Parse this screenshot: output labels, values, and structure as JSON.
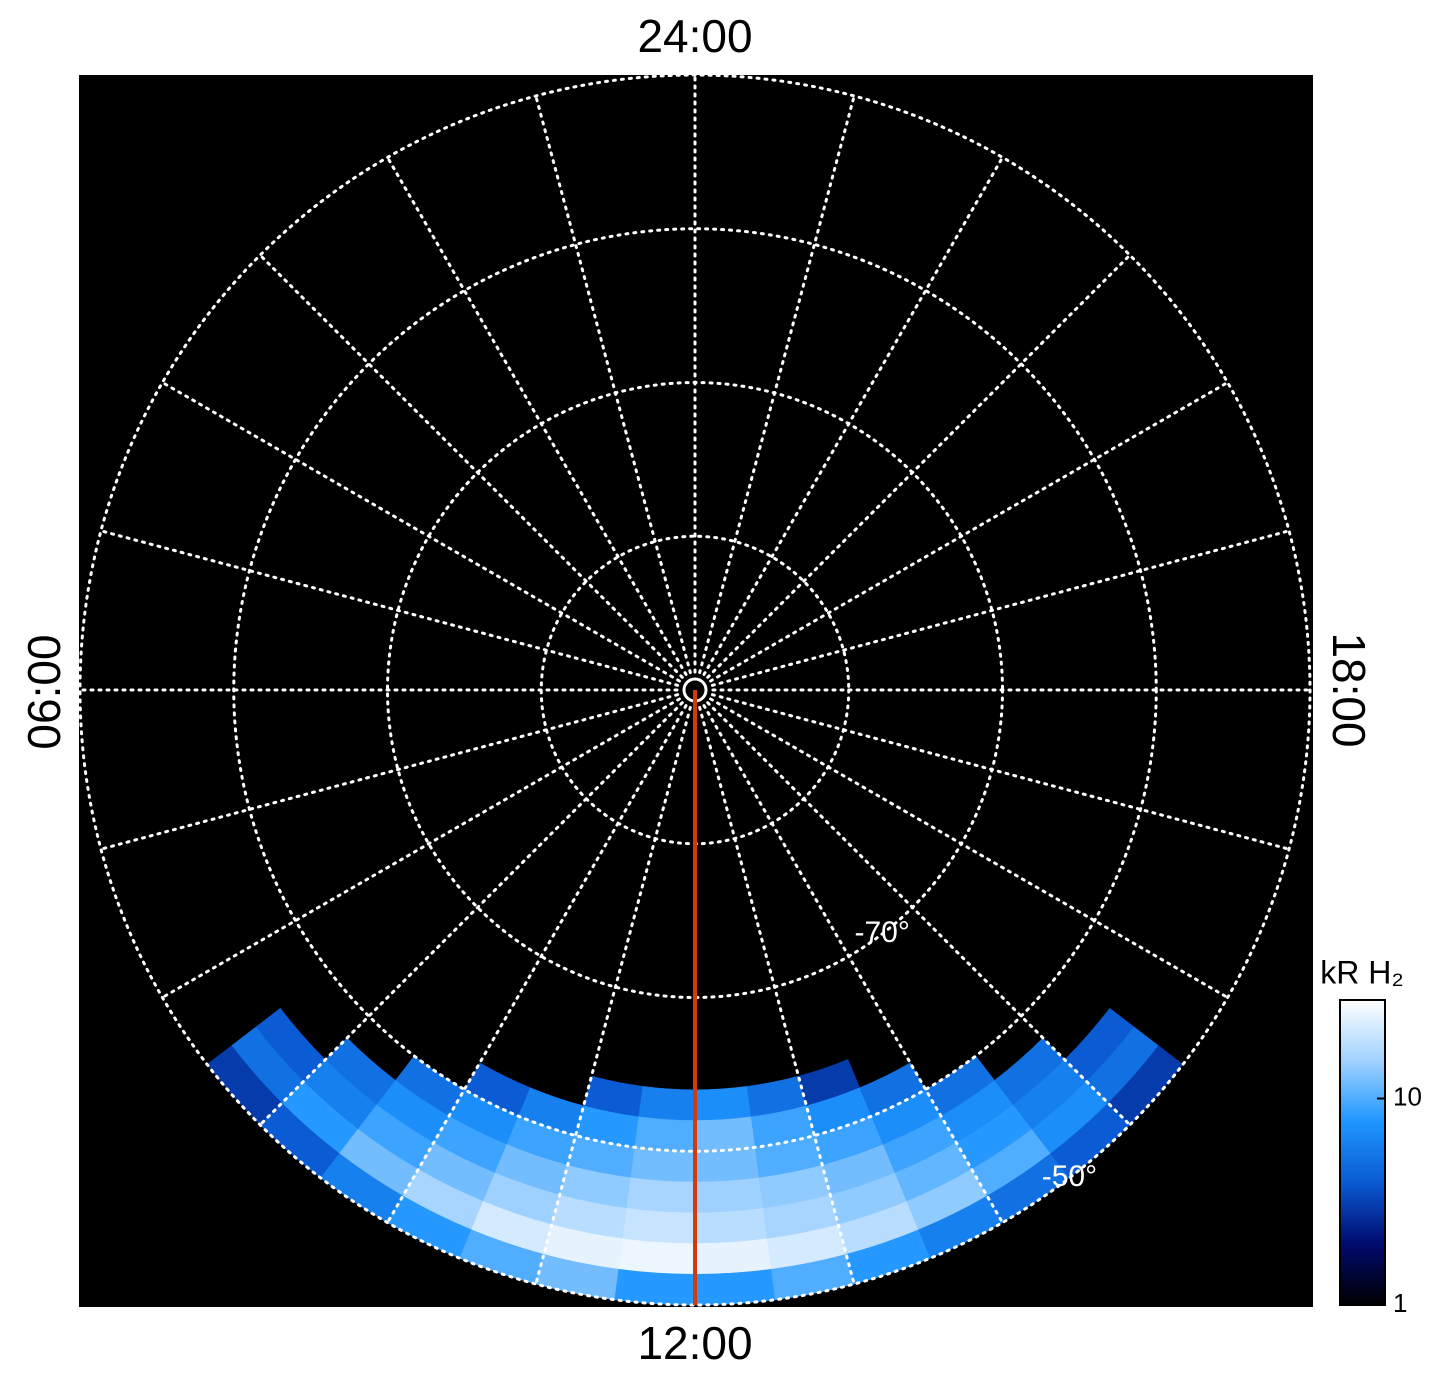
{
  "chart_data": {
    "type": "polar-heatmap",
    "lt_labels": [
      {
        "value": 0,
        "label": "24:00"
      },
      {
        "value": 6,
        "label": "06:00"
      },
      {
        "value": 12,
        "label": "12:00"
      },
      {
        "value": 18,
        "label": "18:00"
      }
    ],
    "latlim": [
      -90,
      -50
    ],
    "lat_gridlines": [
      -80,
      -70,
      -60,
      -50
    ],
    "lt_gridlines": [
      0,
      1,
      2,
      3,
      4,
      5,
      6,
      7,
      8,
      9,
      10,
      11,
      12,
      13,
      14,
      15,
      16,
      17,
      18,
      19,
      20,
      21,
      22,
      23
    ],
    "lat_labels": [
      {
        "value": -70,
        "label": "-70°"
      },
      {
        "value": -50,
        "label": "-50°"
      }
    ],
    "highlight_lt": 12,
    "highlight_color": "#d23a0a",
    "lt_edges": [
      8.5,
      9,
      9.5,
      10,
      10.5,
      11,
      11.5,
      12,
      12.5,
      13,
      13.5,
      14,
      14.5,
      15,
      15.5
    ],
    "lat_edges": [
      -64,
      -62,
      -60,
      -58,
      -56,
      -54,
      -52,
      -50
    ],
    "values": [
      [
        null,
        null,
        null,
        null,
        null,
        4,
        6,
        7,
        5,
        3,
        null,
        null,
        null,
        null
      ],
      [
        null,
        null,
        null,
        4,
        6,
        8,
        10,
        12,
        9,
        7,
        5,
        null,
        null,
        null
      ],
      [
        null,
        null,
        5,
        7,
        9,
        10,
        12,
        12,
        10,
        9,
        7,
        5,
        null,
        null
      ],
      [
        null,
        5,
        7,
        9,
        12,
        14,
        16,
        15,
        14,
        12,
        9,
        7,
        5,
        null
      ],
      [
        4,
        6,
        9,
        12,
        15,
        18,
        20,
        18,
        16,
        14,
        11,
        8,
        6,
        4
      ],
      [
        5,
        8,
        12,
        16,
        22,
        25,
        26,
        25,
        22,
        18,
        14,
        10,
        7,
        5
      ],
      [
        3,
        4,
        6,
        8,
        10,
        12,
        8,
        8,
        10,
        8,
        6,
        5,
        4,
        3
      ]
    ],
    "colorbar_title": "kR H₂",
    "clim": [
      1,
      30
    ],
    "log_scale": true,
    "cticks": [
      1,
      10
    ],
    "colormap": [
      "#000000",
      "#000a6e",
      "#0a5ad2",
      "#1e96ff",
      "#a0d2ff",
      "#ffffff"
    ]
  }
}
